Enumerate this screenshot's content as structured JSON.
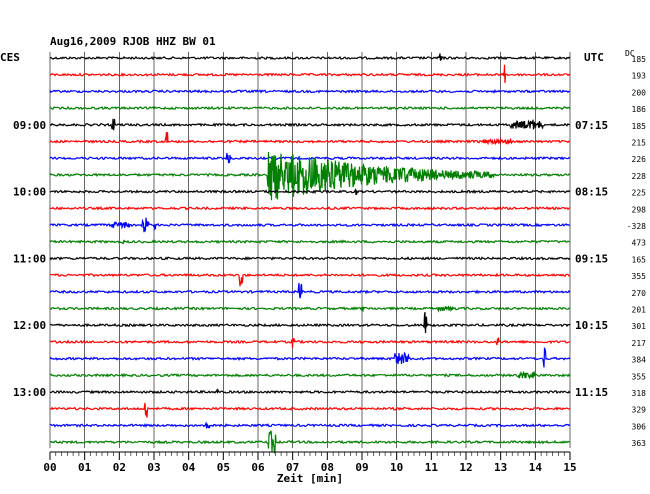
{
  "chart_data": {
    "type": "line",
    "title": "Aug16,2009   RJOB HHZ BW 01",
    "left_label": "CES",
    "right_label": "UTC",
    "dc_label": "DC",
    "xlabel": "Zeit [min]",
    "xlim": [
      0,
      15
    ],
    "x_ticks": [
      "00",
      "01",
      "02",
      "03",
      "04",
      "05",
      "06",
      "07",
      "08",
      "09",
      "10",
      "11",
      "12",
      "13",
      "14",
      "15"
    ],
    "left_time_labels": [
      {
        "row": 4,
        "text": "09:00"
      },
      {
        "row": 8,
        "text": "10:00"
      },
      {
        "row": 12,
        "text": "11:00"
      },
      {
        "row": 16,
        "text": "12:00"
      },
      {
        "row": 20,
        "text": "13:00"
      }
    ],
    "right_time_labels": [
      {
        "row": 4,
        "text": "07:15"
      },
      {
        "row": 8,
        "text": "08:15"
      },
      {
        "row": 12,
        "text": "09:15"
      },
      {
        "row": 16,
        "text": "10:15"
      },
      {
        "row": 20,
        "text": "11:15"
      }
    ],
    "trace_colors": [
      "#000000",
      "#ff0000",
      "#0000ff",
      "#007f00"
    ],
    "dc_values": [
      "185",
      "193",
      "200",
      "186",
      "185",
      "215",
      "226",
      "228",
      "225",
      "298",
      "-328",
      "473",
      "165",
      "355",
      "270",
      "201",
      "301",
      "217",
      "384",
      "355",
      "318",
      "329",
      "306",
      "363"
    ],
    "events": [
      {
        "row": 0,
        "x": 11.25,
        "amp": 12,
        "dur": 0.05
      },
      {
        "row": 1,
        "x": 13.1,
        "amp": 12,
        "dur": 0.05
      },
      {
        "row": 4,
        "x": 1.8,
        "amp": 6,
        "dur": 0.05
      },
      {
        "row": 4,
        "x": 13.3,
        "amp": 4,
        "dur": 0.9
      },
      {
        "row": 4,
        "x": 13.9,
        "amp": 6,
        "dur": 0.1
      },
      {
        "row": 5,
        "x": 3.35,
        "amp": 10,
        "dur": 0.05
      },
      {
        "row": 5,
        "x": 12.5,
        "amp": 2,
        "dur": 0.8
      },
      {
        "row": 6,
        "x": 5.1,
        "amp": 7,
        "dur": 0.1
      },
      {
        "row": 7,
        "x": 6.3,
        "amp": 28,
        "dur": 6.5
      },
      {
        "row": 8,
        "x": 8.8,
        "amp": 3,
        "dur": 0.05
      },
      {
        "row": 10,
        "x": 1.8,
        "amp": 3,
        "dur": 0.5
      },
      {
        "row": 10,
        "x": 2.65,
        "amp": 8,
        "dur": 0.2
      },
      {
        "row": 10,
        "x": 3.0,
        "amp": 4,
        "dur": 0.05
      },
      {
        "row": 11,
        "x": 2.1,
        "amp": 2,
        "dur": 0.05
      },
      {
        "row": 13,
        "x": 5.5,
        "amp": 12,
        "dur": 0.05
      },
      {
        "row": 14,
        "x": 7.2,
        "amp": 9,
        "dur": 0.05
      },
      {
        "row": 15,
        "x": 9.0,
        "amp": 3,
        "dur": 0.05
      },
      {
        "row": 15,
        "x": 11.2,
        "amp": 3,
        "dur": 1.5
      },
      {
        "row": 16,
        "x": 10.8,
        "amp": 14,
        "dur": 0.05
      },
      {
        "row": 17,
        "x": 7.0,
        "amp": 6,
        "dur": 0.05
      },
      {
        "row": 17,
        "x": 12.9,
        "amp": 5,
        "dur": 0.05
      },
      {
        "row": 18,
        "x": 9.95,
        "amp": 6,
        "dur": 0.4
      },
      {
        "row": 18,
        "x": 14.25,
        "amp": 12,
        "dur": 0.05
      },
      {
        "row": 19,
        "x": 13.5,
        "amp": 3,
        "dur": 0.5
      },
      {
        "row": 20,
        "x": 4.8,
        "amp": 3,
        "dur": 0.05
      },
      {
        "row": 21,
        "x": 2.75,
        "amp": 12,
        "dur": 0.05
      },
      {
        "row": 22,
        "x": 4.5,
        "amp": 10,
        "dur": 0.1
      },
      {
        "row": 23,
        "x": 6.3,
        "amp": 12,
        "dur": 0.2
      }
    ]
  }
}
